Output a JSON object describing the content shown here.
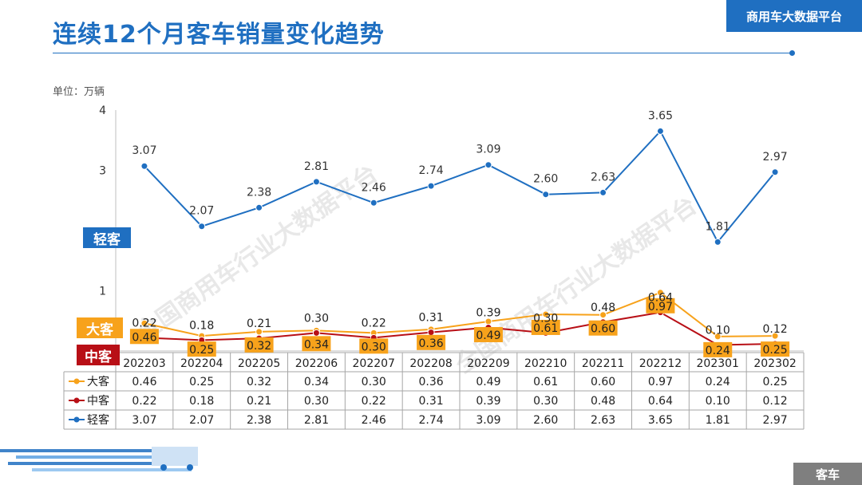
{
  "header": {
    "title": "连续12个月客车销量变化趋势",
    "brand": "商用车大数据平台"
  },
  "footer": {
    "category": "客车"
  },
  "watermark": "全国商用车行业大数据平台",
  "unit_label": "单位：万辆",
  "series_tags": {
    "light": "轻客",
    "big": "大客",
    "mid": "中客"
  },
  "colors": {
    "light": "#1f6fc1",
    "big": "#f7a21b",
    "mid": "#b80f16",
    "accent": "#1f6fc1"
  },
  "chart_data": {
    "type": "line",
    "title": "连续12个月客车销量变化趋势",
    "ylabel": "单位：万辆",
    "ylim": [
      0,
      4
    ],
    "yticks": [
      "4",
      "3",
      "",
      "1"
    ],
    "categories": [
      "202203",
      "202204",
      "202205",
      "202206",
      "202207",
      "202208",
      "202209",
      "202210",
      "202211",
      "202212",
      "202301",
      "202302"
    ],
    "series": [
      {
        "key": "big",
        "name": "大客",
        "values": [
          0.46,
          0.25,
          0.32,
          0.34,
          0.3,
          0.36,
          0.49,
          0.61,
          0.6,
          0.97,
          0.24,
          0.25
        ],
        "labels": [
          "0.46",
          "0.25",
          "0.32",
          "0.34",
          "0.30",
          "0.36",
          "0.49",
          "0.61",
          "0.60",
          "0.97",
          "0.24",
          "0.25"
        ]
      },
      {
        "key": "mid",
        "name": "中客",
        "values": [
          0.22,
          0.18,
          0.21,
          0.3,
          0.22,
          0.31,
          0.39,
          0.3,
          0.48,
          0.64,
          0.1,
          0.12
        ],
        "labels": [
          "0.22",
          "0.18",
          "0.21",
          "0.30",
          "0.22",
          "0.31",
          "0.39",
          "0.30",
          "0.48",
          "0.64",
          "0.10",
          "0.12"
        ]
      },
      {
        "key": "light",
        "name": "轻客",
        "values": [
          3.07,
          2.07,
          2.38,
          2.81,
          2.46,
          2.74,
          3.09,
          2.6,
          2.63,
          3.65,
          1.81,
          2.97
        ],
        "labels": [
          "3.07",
          "2.07",
          "2.38",
          "2.81",
          "2.46",
          "2.74",
          "3.09",
          "2.60",
          "2.63",
          "3.65",
          "1.81",
          "2.97"
        ]
      }
    ]
  }
}
